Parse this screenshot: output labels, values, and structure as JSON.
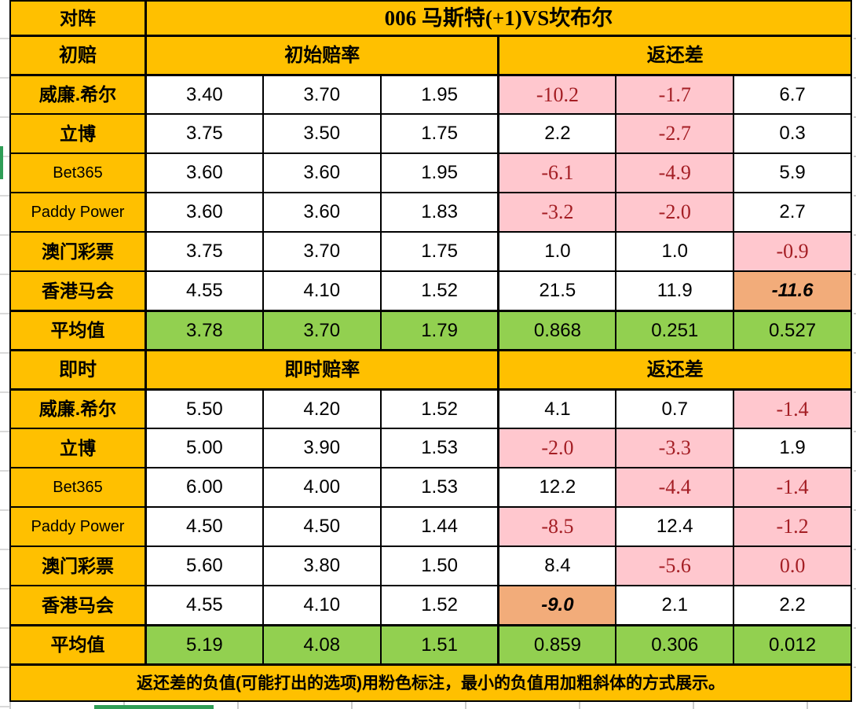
{
  "matchup": {
    "label": "对阵",
    "title": "006 马斯特(+1)VS坎布尔"
  },
  "sections": [
    {
      "name": "初赔",
      "odds_header": "初始赔率",
      "diff_header": "返还差",
      "rows": [
        {
          "bookmaker": "威廉.希尔",
          "odds": [
            "3.40",
            "3.70",
            "1.95"
          ],
          "diff": [
            "-10.2",
            "-1.7",
            "6.7"
          ]
        },
        {
          "bookmaker": "立博",
          "odds": [
            "3.75",
            "3.50",
            "1.75"
          ],
          "diff": [
            "2.2",
            "-2.7",
            "0.3"
          ]
        },
        {
          "bookmaker": "Bet365",
          "odds": [
            "3.60",
            "3.60",
            "1.95"
          ],
          "diff": [
            "-6.1",
            "-4.9",
            "5.9"
          ]
        },
        {
          "bookmaker": "Paddy Power",
          "odds": [
            "3.60",
            "3.60",
            "1.83"
          ],
          "diff": [
            "-3.2",
            "-2.0",
            "2.7"
          ]
        },
        {
          "bookmaker": "澳门彩票",
          "odds": [
            "3.75",
            "3.70",
            "1.75"
          ],
          "diff": [
            "1.0",
            "1.0",
            "-0.9"
          ]
        },
        {
          "bookmaker": "香港马会",
          "odds": [
            "4.55",
            "4.10",
            "1.52"
          ],
          "diff": [
            "21.5",
            "11.9",
            "-11.6"
          ]
        }
      ],
      "average": {
        "label": "平均值",
        "odds": [
          "3.78",
          "3.70",
          "1.79"
        ],
        "diff": [
          "0.868",
          "0.251",
          "0.527"
        ]
      },
      "pink_cells": [
        [
          0,
          0
        ],
        [
          0,
          1
        ],
        [
          1,
          1
        ],
        [
          2,
          0
        ],
        [
          2,
          1
        ],
        [
          3,
          0
        ],
        [
          3,
          1
        ],
        [
          4,
          2
        ]
      ],
      "min_negative_cells": [
        [
          5,
          2
        ]
      ]
    },
    {
      "name": "即时",
      "odds_header": "即时赔率",
      "diff_header": "返还差",
      "rows": [
        {
          "bookmaker": "威廉.希尔",
          "odds": [
            "5.50",
            "4.20",
            "1.52"
          ],
          "diff": [
            "4.1",
            "0.7",
            "-1.4"
          ]
        },
        {
          "bookmaker": "立博",
          "odds": [
            "5.00",
            "3.90",
            "1.53"
          ],
          "diff": [
            "-2.0",
            "-3.3",
            "1.9"
          ]
        },
        {
          "bookmaker": "Bet365",
          "odds": [
            "6.00",
            "4.00",
            "1.53"
          ],
          "diff": [
            "12.2",
            "-4.4",
            "-1.4"
          ]
        },
        {
          "bookmaker": "Paddy Power",
          "odds": [
            "4.50",
            "4.50",
            "1.44"
          ],
          "diff": [
            "-8.5",
            "12.4",
            "-1.2"
          ]
        },
        {
          "bookmaker": "澳门彩票",
          "odds": [
            "5.60",
            "3.80",
            "1.50"
          ],
          "diff": [
            "8.4",
            "-5.6",
            "0.0"
          ]
        },
        {
          "bookmaker": "香港马会",
          "odds": [
            "4.55",
            "4.10",
            "1.52"
          ],
          "diff": [
            "-9.0",
            "2.1",
            "2.2"
          ]
        }
      ],
      "average": {
        "label": "平均值",
        "odds": [
          "5.19",
          "4.08",
          "1.51"
        ],
        "diff": [
          "0.859",
          "0.306",
          "0.012"
        ]
      },
      "pink_cells": [
        [
          0,
          2
        ],
        [
          1,
          0
        ],
        [
          1,
          1
        ],
        [
          2,
          1
        ],
        [
          2,
          2
        ],
        [
          3,
          0
        ],
        [
          3,
          2
        ],
        [
          4,
          1
        ],
        [
          4,
          2
        ]
      ],
      "min_negative_cells": [
        [
          5,
          0
        ]
      ]
    }
  ],
  "footer_note": "返还差的负值(可能打出的选项)用粉色标注，最小的负值用加粗斜体的方式展示。",
  "colors": {
    "header_bg": "#FFC000",
    "average_bg": "#92D050",
    "negative_bg": "#FFC7CE",
    "negative_text": "#A41E24",
    "min_negative_bg": "#F2AC7A",
    "selection_green": "#2F9E57",
    "grid_border": "#000000"
  }
}
